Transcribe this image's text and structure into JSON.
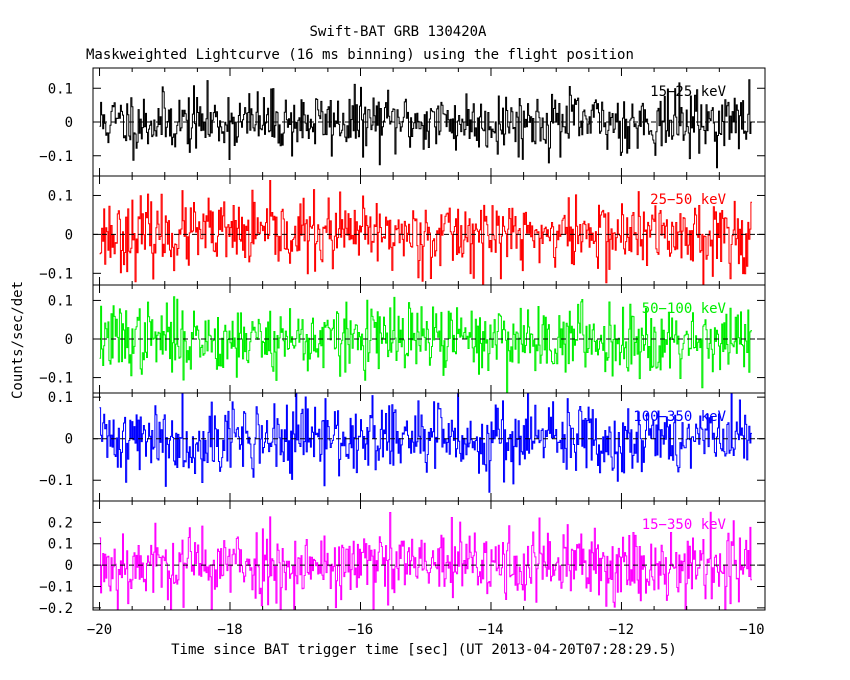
{
  "chart_data": {
    "type": "line",
    "title": "Swift-BAT GRB 130420A",
    "subtitle": "Maskweighted Lightcurve (16 ms binning) using the flight position",
    "xlabel": "Time since BAT trigger time [sec] (UT 2013-04-20T07:28:29.5)",
    "ylabel": "Counts/sec/det",
    "xlim": [
      -20.1,
      -9.8
    ],
    "xticks": [
      -20,
      -18,
      -16,
      -14,
      -12,
      -10
    ],
    "xtick_labels": [
      "−20",
      "−18",
      "−16",
      "−14",
      "−12",
      "−10"
    ],
    "grid": false,
    "zero_line": "dashed",
    "panels": [
      {
        "name": "15-25 keV",
        "label": "15−25 keV",
        "color": "#000000",
        "ylim": [
          -0.16,
          0.16
        ],
        "yticks": [
          0.1,
          0,
          -0.1
        ],
        "ytick_labels": [
          "0.1",
          "0",
          "−0.1"
        ],
        "noise_std": 0.045,
        "seed": 11
      },
      {
        "name": "25-50 keV",
        "label": "25−50 keV",
        "color": "#ff0000",
        "ylim": [
          -0.13,
          0.15
        ],
        "yticks": [
          0.1,
          0,
          -0.1
        ],
        "ytick_labels": [
          "0.1",
          "0",
          "−0.1"
        ],
        "noise_std": 0.045,
        "seed": 23
      },
      {
        "name": "50-100 keV",
        "label": "50−100 keV",
        "color": "#00ee00",
        "ylim": [
          -0.14,
          0.14
        ],
        "yticks": [
          0.1,
          0,
          -0.1
        ],
        "ytick_labels": [
          "0.1",
          "0",
          "−0.1"
        ],
        "noise_std": 0.045,
        "seed": 37
      },
      {
        "name": "100-350 keV",
        "label": "100−350 keV",
        "color": "#0000ff",
        "ylim": [
          -0.15,
          0.11
        ],
        "yticks": [
          0.1,
          0,
          -0.1
        ],
        "ytick_labels": [
          "0.1",
          "0",
          "−0.1"
        ],
        "noise_std": 0.045,
        "seed": 41
      },
      {
        "name": "15-350 keV",
        "label": "15−350 keV",
        "color": "#ff00ff",
        "ylim": [
          -0.21,
          0.3
        ],
        "yticks": [
          0.2,
          0.1,
          0,
          -0.1,
          -0.2
        ],
        "ytick_labels": [
          "0.2",
          "0.1",
          "0",
          "−0.1",
          "−0.2"
        ],
        "noise_std": 0.09,
        "seed": 53
      }
    ],
    "binning_sec": 0.016,
    "x_start": -20.0,
    "x_end": -10.0
  }
}
